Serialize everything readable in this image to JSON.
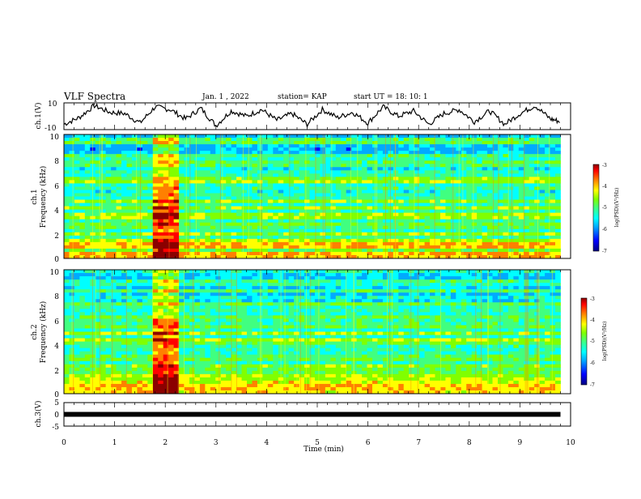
{
  "header": {
    "title": "VLF Spectra",
    "date": "Jan. 1 , 2022",
    "station": "station= KAP",
    "start": "start UT = 18: 10: 1"
  },
  "colors": {
    "colormap": [
      "#000080",
      "#0000ff",
      "#00aaff",
      "#00ffff",
      "#40ff80",
      "#80ff00",
      "#ffff00",
      "#ff8000",
      "#ff0000",
      "#8b0000"
    ],
    "line": "#000000"
  },
  "chart_data": [
    {
      "type": "line",
      "panel": "ch1-waveform",
      "ylabel": "ch.1(V)",
      "ylim": [
        -10,
        10
      ],
      "yticks": [
        "10",
        "-10"
      ],
      "x": [
        0,
        0.3,
        0.6,
        0.9,
        1.2,
        1.5,
        1.8,
        2.1,
        2.4,
        2.7,
        3.0,
        3.3,
        3.6,
        3.9,
        4.2,
        4.5,
        4.8,
        5.1,
        5.4,
        5.7,
        6.0,
        6.3,
        6.6,
        6.9,
        7.2,
        7.5,
        7.8,
        8.1,
        8.4,
        8.7,
        9.0,
        9.3,
        9.6,
        9.8
      ],
      "y": [
        -6,
        -1,
        8,
        3,
        2,
        -5,
        7,
        5,
        -2,
        6,
        -7,
        4,
        0,
        5,
        -3,
        2,
        -6,
        5,
        -1,
        3,
        -5,
        7,
        0,
        4,
        -6,
        2,
        5,
        -4,
        4,
        -6,
        2,
        8,
        -2,
        -4
      ]
    },
    {
      "type": "heatmap",
      "panel": "ch1-spectrogram",
      "ylabel": "ch.1\nFrequency (kHz)",
      "xlim": [
        0,
        10
      ],
      "ylim": [
        0,
        10
      ],
      "yticks": [
        "0",
        "2",
        "4",
        "6",
        "8",
        "10"
      ],
      "colorbar": {
        "label": "log(PSD)(V²/Hz)",
        "range": [
          -7,
          -3
        ],
        "ticks": [
          "-3",
          "-4",
          "-5",
          "-6",
          "-7"
        ]
      },
      "data_extent_min": 9.8
    },
    {
      "type": "heatmap",
      "panel": "ch2-spectrogram",
      "ylabel": "ch.2\nFrequency (kHz)",
      "xlim": [
        0,
        10
      ],
      "ylim": [
        0,
        10
      ],
      "yticks": [
        "0",
        "2",
        "4",
        "6",
        "8",
        "10"
      ],
      "colorbar": {
        "label": "log(PSD)(V²/Hz)",
        "range": [
          -7,
          -3
        ],
        "ticks": [
          "-3",
          "-4",
          "-5",
          "-6",
          "-7"
        ]
      },
      "data_extent_min": 9.8
    },
    {
      "type": "line",
      "panel": "ch3-waveform",
      "ylabel": "ch.3(V)",
      "ylim": [
        -5,
        5
      ],
      "yticks": [
        "5",
        "0",
        "-5"
      ],
      "x": [
        0,
        9.8
      ],
      "y": [
        0,
        0
      ],
      "xlabel": "Time (min)",
      "xticks": [
        "0",
        "1",
        "2",
        "3",
        "4",
        "5",
        "6",
        "7",
        "8",
        "9",
        "10"
      ]
    }
  ]
}
